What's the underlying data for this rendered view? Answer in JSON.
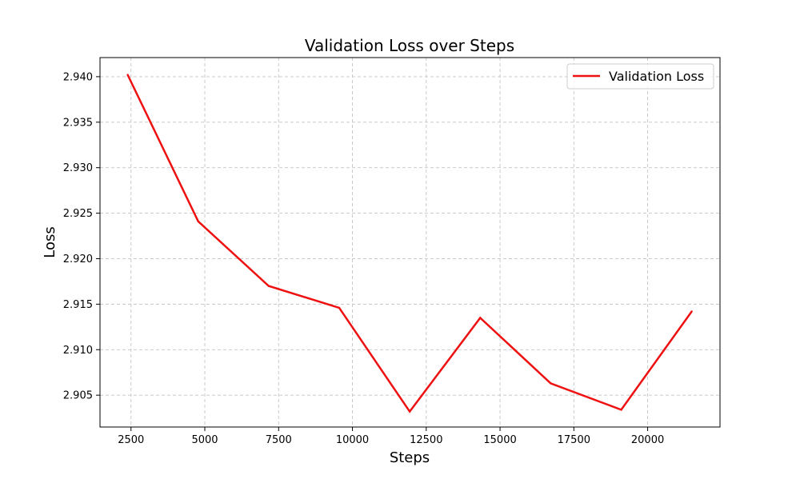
{
  "chart_data": {
    "type": "line",
    "title": "Validation Loss over Steps",
    "xlabel": "Steps",
    "ylabel": "Loss",
    "xlim": [
      1450,
      22450
    ],
    "ylim": [
      2.9015,
      2.9421
    ],
    "x_ticks": [
      2500,
      5000,
      7500,
      10000,
      12500,
      15000,
      17500,
      20000
    ],
    "x_tick_labels": [
      "2500",
      "5000",
      "7500",
      "10000",
      "12500",
      "15000",
      "17500",
      "20000"
    ],
    "y_ticks": [
      2.905,
      2.91,
      2.915,
      2.92,
      2.925,
      2.93,
      2.935,
      2.94
    ],
    "y_tick_labels": [
      "2.905",
      "2.910",
      "2.915",
      "2.920",
      "2.925",
      "2.930",
      "2.935",
      "2.940"
    ],
    "grid": true,
    "legend_position": "upper right",
    "series": [
      {
        "name": "Validation Loss",
        "color": "#ee1111",
        "x": [
          2388,
          4776,
          7164,
          9552,
          11940,
          14328,
          16716,
          19104,
          21492
        ],
        "y": [
          2.9402,
          2.9241,
          2.917,
          2.9146,
          2.9032,
          2.9135,
          2.9063,
          2.9034,
          2.9142
        ]
      }
    ]
  }
}
